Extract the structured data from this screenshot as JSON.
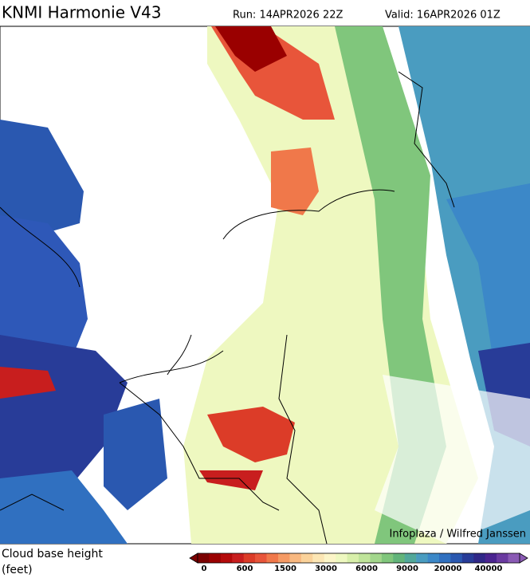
{
  "header": {
    "title": "KNMI Harmonie V43",
    "run": "Run: 14APR2026 22Z",
    "valid": "Valid: 16APR2026 01Z"
  },
  "credit": "Infoplaza / Wilfred Janssen",
  "legend": {
    "title": "Cloud base height",
    "unit": "(feet)",
    "ticks": [
      "0",
      "600",
      "1500",
      "3000",
      "6000",
      "9000",
      "20000",
      "40000"
    ],
    "colors": [
      "#7a0000",
      "#9a0000",
      "#b40a0a",
      "#c81e1e",
      "#dc3c28",
      "#e8553a",
      "#f0784a",
      "#f59a64",
      "#f8b880",
      "#fad29a",
      "#fce6b4",
      "#fcf5c8",
      "#eef8c0",
      "#d8efaa",
      "#bfe49a",
      "#a2d68c",
      "#80c67c",
      "#62b47a",
      "#52a89a",
      "#4a9cc0",
      "#3c88c8",
      "#3070c0",
      "#2a58b0",
      "#283c98",
      "#302888",
      "#4a2490",
      "#6a3aa0",
      "#8a5ab4"
    ]
  }
}
